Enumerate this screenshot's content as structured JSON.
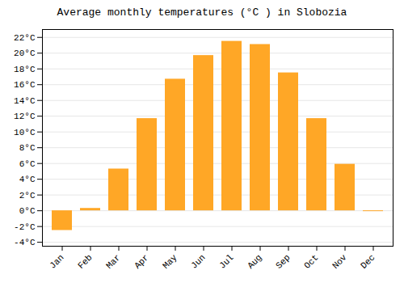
{
  "chart_data": {
    "type": "bar",
    "title": "Average monthly temperatures (°C ) in Slobozia",
    "categories": [
      "Jan",
      "Feb",
      "Mar",
      "Apr",
      "May",
      "Jun",
      "Jul",
      "Aug",
      "Sep",
      "Oct",
      "Nov",
      "Dec"
    ],
    "values": [
      -2.5,
      0.3,
      5.3,
      11.7,
      16.7,
      19.7,
      21.5,
      21.1,
      17.5,
      11.7,
      5.9,
      -0.1
    ],
    "color": "#FFA726",
    "ylim": [
      -4.5,
      23
    ],
    "yticks": [
      {
        "value": -4,
        "label": "-4°C"
      },
      {
        "value": -2,
        "label": "-2°C"
      },
      {
        "value": 0,
        "label": "0°C"
      },
      {
        "value": 2,
        "label": "2°C"
      },
      {
        "value": 4,
        "label": "4°C"
      },
      {
        "value": 6,
        "label": "6°C"
      },
      {
        "value": 8,
        "label": "8°C"
      },
      {
        "value": 10,
        "label": "10°C"
      },
      {
        "value": 12,
        "label": "12°C"
      },
      {
        "value": 14,
        "label": "14°C"
      },
      {
        "value": 16,
        "label": "16°C"
      },
      {
        "value": 18,
        "label": "18°C"
      },
      {
        "value": 20,
        "label": "20°C"
      },
      {
        "value": 22,
        "label": "22°C"
      }
    ],
    "grid": true
  }
}
